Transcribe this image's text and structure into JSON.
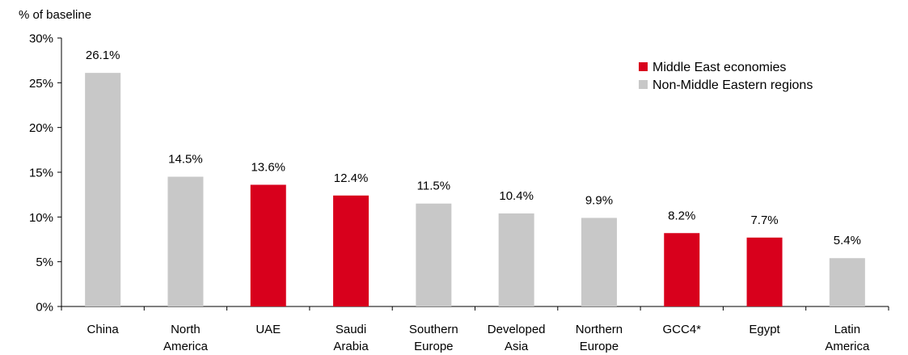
{
  "chart_data": {
    "type": "bar",
    "ylabel": "% of baseline",
    "ylim": [
      0,
      30
    ],
    "yticks": [
      "0%",
      "5%",
      "10%",
      "15%",
      "20%",
      "25%",
      "30%"
    ],
    "ytick_values": [
      0,
      5,
      10,
      15,
      20,
      25,
      30
    ],
    "categories": [
      [
        "China"
      ],
      [
        "North",
        "America"
      ],
      [
        "UAE"
      ],
      [
        "Saudi",
        "Arabia"
      ],
      [
        "Southern",
        "Europe"
      ],
      [
        "Developed",
        "Asia"
      ],
      [
        "Northern",
        "Europe"
      ],
      [
        "GCC4*"
      ],
      [
        "Egypt"
      ],
      [
        "Latin",
        "America"
      ]
    ],
    "values": [
      26.1,
      14.5,
      13.6,
      12.4,
      11.5,
      10.4,
      9.9,
      8.2,
      7.7,
      5.4
    ],
    "data_labels": [
      "26.1%",
      "14.5%",
      "13.6%",
      "12.4%",
      "11.5%",
      "10.4%",
      "9.9%",
      "8.2%",
      "7.7%",
      "5.4%"
    ],
    "groups": [
      "Non-Middle Eastern regions",
      "Non-Middle Eastern regions",
      "Middle East economies",
      "Middle East economies",
      "Non-Middle Eastern regions",
      "Non-Middle Eastern regions",
      "Non-Middle Eastern regions",
      "Middle East economies",
      "Middle East economies",
      "Non-Middle Eastern regions"
    ],
    "legend": [
      {
        "name": "Middle East economies",
        "color": "#d8001c"
      },
      {
        "name": "Non-Middle Eastern regions",
        "color": "#c8c8c8"
      }
    ],
    "legend_position": "top-right",
    "grid": false
  }
}
